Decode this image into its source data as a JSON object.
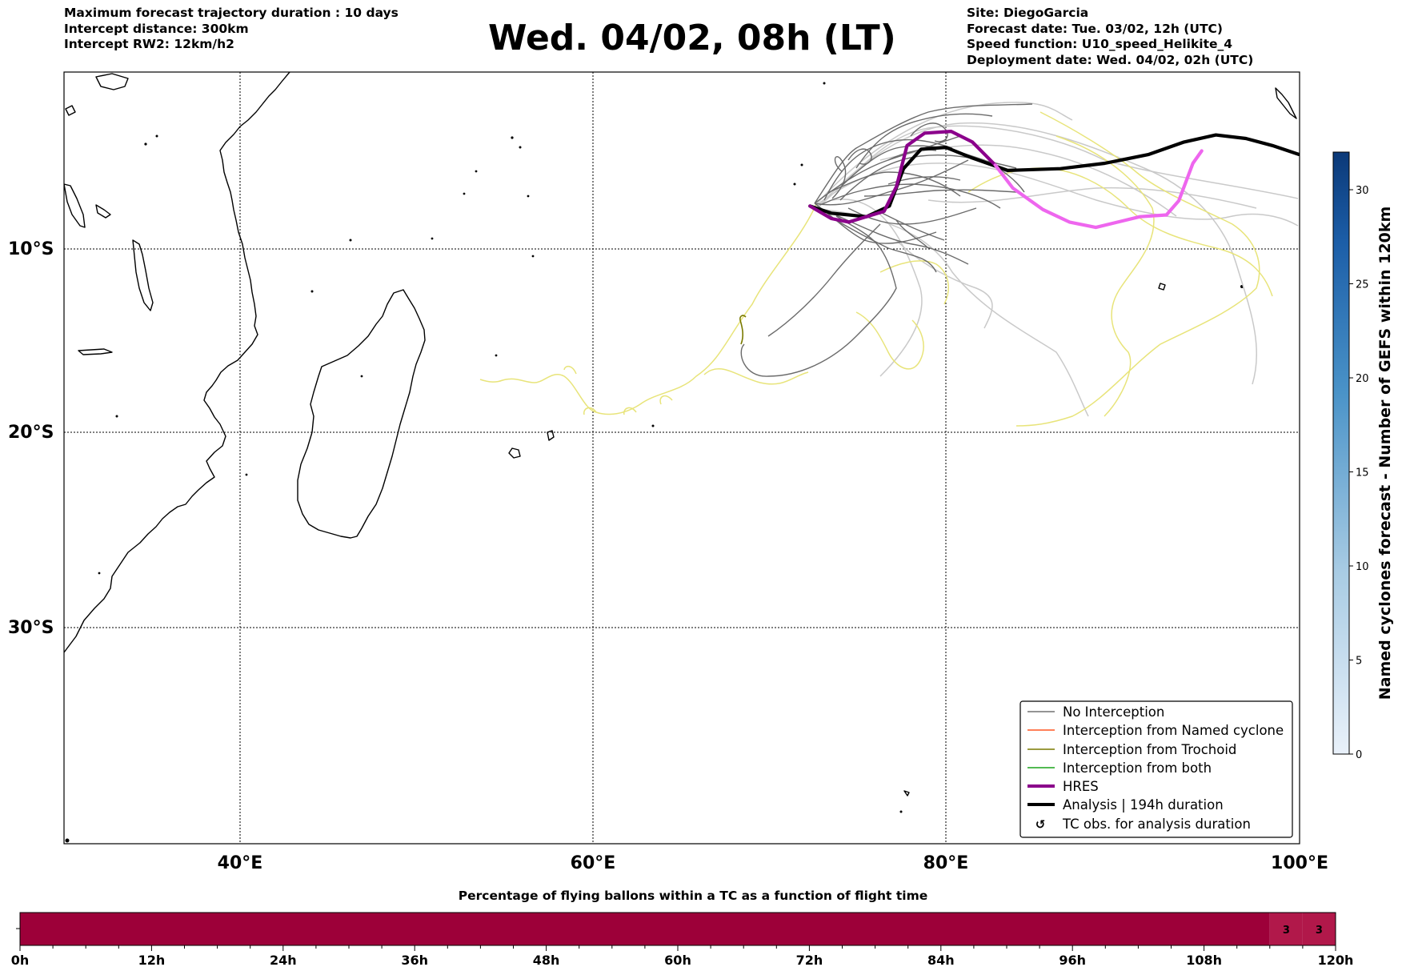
{
  "header": {
    "left_lines": [
      "Maximum forecast trajectory duration : 10 days",
      "Intercept distance: 300km",
      "Intercept RW2: 12km/h2"
    ],
    "title": "Wed. 04/02, 08h (LT)",
    "right_lines": [
      "Site: DiegoGarcia",
      "Forecast date: Tue. 03/02, 12h (UTC)",
      "Speed function: U10_speed_Helikite_4",
      "Deployment date: Wed. 04/02, 02h (UTC)"
    ]
  },
  "map": {
    "lon_labels": [
      "40°E",
      "60°E",
      "80°E",
      "100°E"
    ],
    "lat_labels": [
      "10°S",
      "20°S",
      "30°S"
    ]
  },
  "legend": {
    "items": [
      {
        "label": "No Interception",
        "color": "#707070"
      },
      {
        "label": "Interception from Named cyclone",
        "color": "#ff5722"
      },
      {
        "label": "Interception from Trochoid",
        "color": "#7a7a00"
      },
      {
        "label": "Interception from both",
        "color": "#1aa31a"
      },
      {
        "label": "HRES",
        "color": "#8b008b"
      },
      {
        "label": "Analysis | 194h duration",
        "color": "#000000"
      },
      {
        "label": "TC obs. for analysis duration",
        "color": "#000000",
        "symbol": "↺"
      }
    ]
  },
  "colorbar": {
    "label": "Named cyclones forecast - Number of GEFS within 120km",
    "ticks": [
      "0",
      "5",
      "10",
      "15",
      "20",
      "25",
      "30"
    ],
    "min": 0,
    "max": 32
  },
  "bottom_bar": {
    "title": "Percentage of flying ballons within a TC as a function of flight time",
    "tick_labels": [
      "0h",
      "12h",
      "24h",
      "36h",
      "48h",
      "60h",
      "72h",
      "84h",
      "96h",
      "108h",
      "120h"
    ],
    "cells": [
      {
        "from_h": 0,
        "to_h": 114,
        "value": "",
        "color": "#9d0039"
      },
      {
        "from_h": 114,
        "to_h": 117,
        "value": "3",
        "color": "#b1184a"
      },
      {
        "from_h": 117,
        "to_h": 120,
        "value": "3",
        "color": "#b1184a"
      }
    ]
  },
  "chart_data": {
    "type": "map",
    "trajectories_lonlat": {
      "hres": [
        [
          72.3,
          -7.6
        ],
        [
          73.5,
          -8.3
        ],
        [
          74.5,
          -8.5
        ],
        [
          76.5,
          -7.9
        ],
        [
          77.2,
          -6.5
        ],
        [
          77.8,
          -4.2
        ],
        [
          78.8,
          -3.5
        ],
        [
          80.3,
          -3.4
        ],
        [
          81.5,
          -4.0
        ],
        [
          82.8,
          -5.3
        ],
        [
          83.8,
          -6.6
        ],
        [
          85.5,
          -7.8
        ],
        [
          87.0,
          -8.5
        ],
        [
          88.5,
          -8.8
        ],
        [
          91.0,
          -8.2
        ],
        [
          92.5,
          -8.1
        ],
        [
          93.2,
          -7.3
        ],
        [
          94.0,
          -5.2
        ],
        [
          94.5,
          -4.5
        ]
      ],
      "analysis": [
        [
          72.3,
          -7.6
        ],
        [
          73.5,
          -8.0
        ],
        [
          75.5,
          -8.2
        ],
        [
          76.8,
          -7.6
        ],
        [
          77.6,
          -5.5
        ],
        [
          78.6,
          -4.4
        ],
        [
          80.0,
          -4.3
        ],
        [
          81.5,
          -4.9
        ],
        [
          83.5,
          -5.6
        ],
        [
          86.5,
          -5.5
        ],
        [
          89.0,
          -5.2
        ],
        [
          91.5,
          -4.7
        ],
        [
          93.5,
          -4.0
        ],
        [
          95.3,
          -3.6
        ],
        [
          97.0,
          -3.8
        ],
        [
          98.5,
          -4.2
        ],
        [
          100.0,
          -4.7
        ]
      ]
    }
  }
}
